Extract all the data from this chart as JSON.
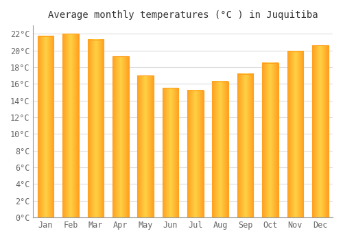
{
  "title": "Average monthly temperatures (°C ) in Juquitiba",
  "months": [
    "Jan",
    "Feb",
    "Mar",
    "Apr",
    "May",
    "Jun",
    "Jul",
    "Aug",
    "Sep",
    "Oct",
    "Nov",
    "Dec"
  ],
  "values": [
    21.7,
    22.0,
    21.3,
    19.3,
    17.0,
    15.5,
    15.2,
    16.3,
    17.2,
    18.5,
    19.9,
    20.6
  ],
  "bar_color_center": "#FFD044",
  "bar_color_edge": "#FFA020",
  "ylim": [
    0,
    23
  ],
  "yticks": [
    0,
    2,
    4,
    6,
    8,
    10,
    12,
    14,
    16,
    18,
    20,
    22
  ],
  "background_color": "#FFFFFF",
  "grid_color": "#DDDDDD",
  "title_fontsize": 10,
  "tick_fontsize": 8.5,
  "bar_width": 0.65
}
